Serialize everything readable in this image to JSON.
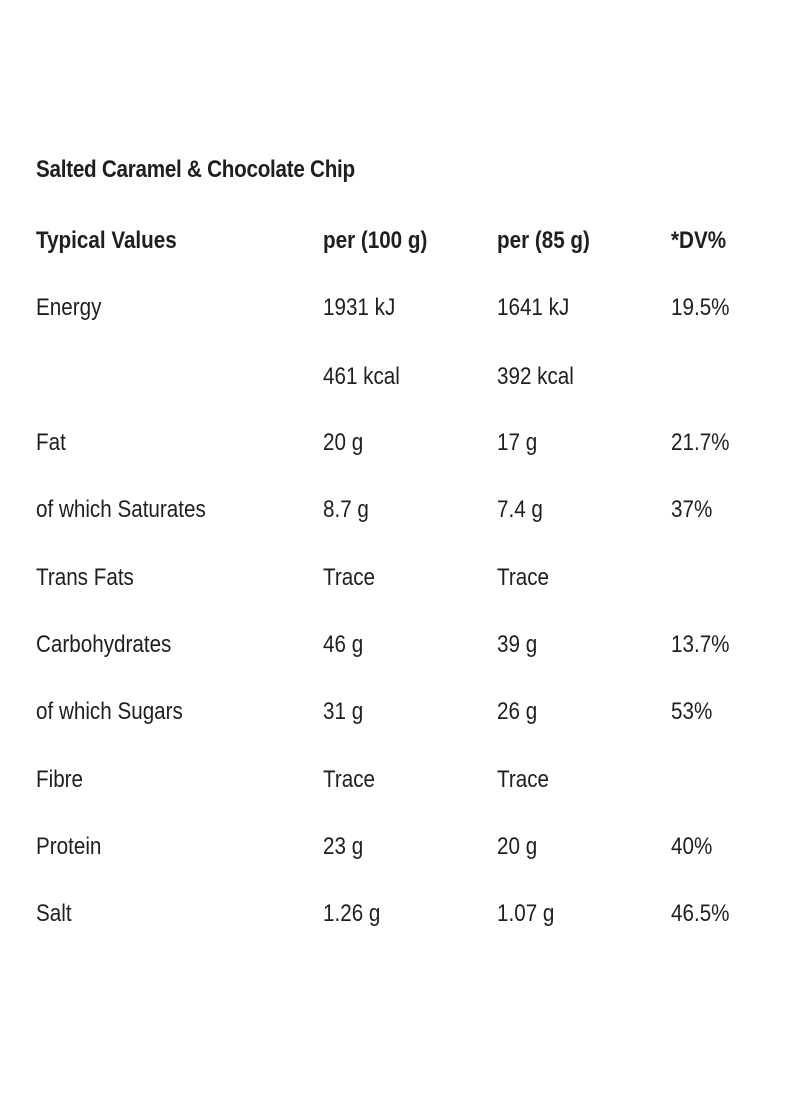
{
  "title": "Salted Caramel & Chocolate Chip",
  "header": [
    "Typical Values",
    "per (100 g)",
    "per (85 g)",
    "*DV%"
  ],
  "rows": [
    [
      "Energy",
      "1931 kJ",
      "1641 kJ",
      "19.5%"
    ],
    [
      "",
      "461 kcal",
      "392 kcal",
      ""
    ],
    [
      "Fat",
      "20 g",
      "17 g",
      "21.7%"
    ],
    [
      "of which Saturates",
      "8.7 g",
      "7.4 g",
      "37%"
    ],
    [
      "Trans Fats",
      "Trace",
      "Trace",
      ""
    ],
    [
      "Carbohydrates",
      "46 g",
      "39 g",
      "13.7%"
    ],
    [
      "of which Sugars",
      "31 g",
      "26 g",
      "53%"
    ],
    [
      "Fibre",
      "Trace",
      "Trace",
      ""
    ],
    [
      "Protein",
      "23 g",
      "20 g",
      "40%"
    ],
    [
      "Salt",
      "1.26 g",
      "1.07 g",
      "46.5%"
    ]
  ]
}
